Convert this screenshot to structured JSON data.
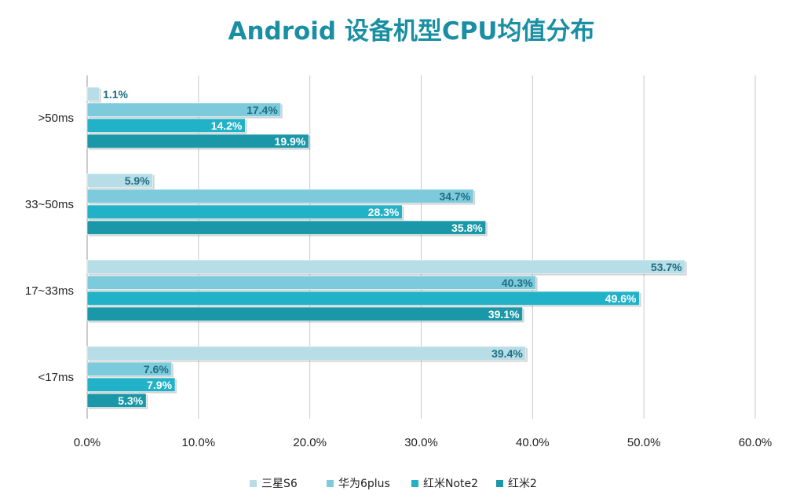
{
  "chart_data": {
    "type": "bar",
    "orientation": "horizontal",
    "title": "Android 设备机型CPU均值分布",
    "xlabel": "",
    "ylabel": "",
    "xlim": [
      0,
      60
    ],
    "x_ticks": [
      "0.0%",
      "10.0%",
      "20.0%",
      "30.0%",
      "40.0%",
      "50.0%",
      "60.0%"
    ],
    "grid": "vertical",
    "legend_position": "bottom",
    "categories": [
      ">50ms",
      "33~50ms",
      "17~33ms",
      "<17ms"
    ],
    "series": [
      {
        "name": "三星S6",
        "color": "#b7dde6",
        "label_color": "#1f6f80",
        "values": [
          1.1,
          5.9,
          53.7,
          39.4
        ],
        "labels": [
          "1.1%",
          "5.9%",
          "53.7%",
          "39.4%"
        ]
      },
      {
        "name": "华为6plus",
        "color": "#7ccadb",
        "label_color": "#1f6f80",
        "values": [
          17.4,
          34.7,
          40.3,
          7.6
        ],
        "labels": [
          "17.4%",
          "34.7%",
          "40.3%",
          "7.6%"
        ]
      },
      {
        "name": "红米Note2",
        "color": "#22b2c8",
        "label_color": "#ffffff",
        "values": [
          14.2,
          28.3,
          49.6,
          7.9
        ],
        "labels": [
          "14.2%",
          "28.3%",
          "49.6%",
          "7.9%"
        ]
      },
      {
        "name": "红米2",
        "color": "#1a98a8",
        "label_color": "#ffffff",
        "values": [
          19.9,
          35.8,
          39.1,
          5.3
        ],
        "labels": [
          "19.9%",
          "35.8%",
          "39.1%",
          "5.3%"
        ]
      }
    ]
  }
}
